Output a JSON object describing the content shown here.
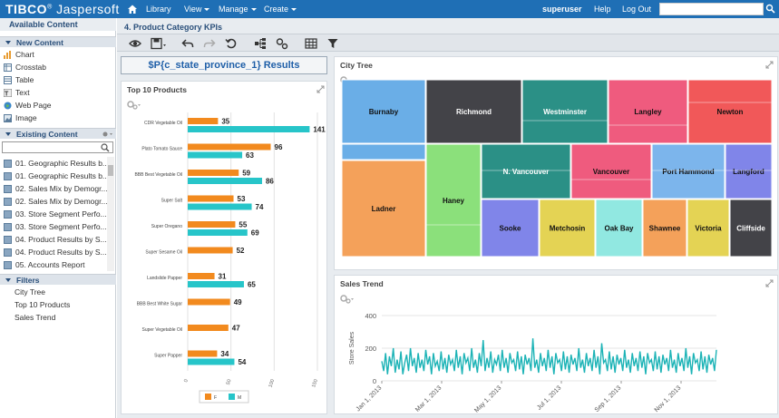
{
  "app": {
    "logo_brand": "TIBCO",
    "logo_product": "Jaspersoft",
    "logo_mark": "®",
    "nav": {
      "library": "Library",
      "view": "View",
      "manage": "Manage",
      "create": "Create"
    },
    "user": "superuser",
    "help": "Help",
    "logout": "Log Out",
    "search_value": ""
  },
  "left_panel": {
    "title": "Available Content",
    "new_content": {
      "header": "New Content",
      "items": [
        {
          "label": "Chart",
          "icon": "chart-icon"
        },
        {
          "label": "Crosstab",
          "icon": "crosstab-icon"
        },
        {
          "label": "Table",
          "icon": "table-icon"
        },
        {
          "label": "Text",
          "icon": "text-icon"
        },
        {
          "label": "Web Page",
          "icon": "web-page-icon"
        },
        {
          "label": "Image",
          "icon": "image-icon"
        }
      ]
    },
    "existing_content": {
      "header": "Existing Content",
      "search_value": "",
      "items": [
        "01. Geographic Results b...",
        "01. Geographic Results b...",
        "02. Sales Mix by Demogr...",
        "02. Sales Mix by Demogr...",
        "03. Store Segment Perfo...",
        "03. Store Segment Perfo...",
        "04. Product Results by S...",
        "04. Product Results by S...",
        "05. Accounts Report"
      ]
    },
    "filters": {
      "header": "Filters",
      "items": [
        "City Tree",
        "Top 10 Products",
        "Sales Trend"
      ]
    }
  },
  "dashboard": {
    "title": "4. Product Category KPIs",
    "toolbar_icons": [
      "eye-icon",
      "save-icon",
      "undo-icon",
      "redo-icon",
      "reset-icon",
      "hierarchy-icon",
      "parameters-icon",
      "grid-icon",
      "filter-icon"
    ],
    "results_text": "$P{c_state_province_1} Results"
  },
  "top10": {
    "title": "Top 10 Products",
    "chart_data": {
      "type": "bar",
      "orientation": "horizontal",
      "categories": [
        "CDR Vegetable Oil",
        "Plato Tomato Sauce",
        "BBB Best Vegetable Oil",
        "Super Salt",
        "Super Oregano",
        "Super Sesame Oil",
        "Landslide Papper",
        "BBB Best White Sugar",
        "Super Vegetable Oil",
        "Super Papper"
      ],
      "series": [
        {
          "name": "F",
          "color": "#f28a1e",
          "values": [
            35,
            96,
            59,
            53,
            55,
            52,
            31,
            49,
            47,
            34
          ]
        },
        {
          "name": "M",
          "color": "#27c5c9",
          "values": [
            141,
            63,
            86,
            74,
            69,
            0,
            65,
            0,
            0,
            54
          ]
        }
      ],
      "data_labels": {
        "F": [
          "35",
          "96",
          "59",
          "53",
          "55",
          "52",
          "31",
          "49",
          "47",
          "34"
        ],
        "M": [
          "141",
          "63",
          "86",
          "74",
          "69",
          "",
          "65",
          "",
          "",
          "54"
        ]
      },
      "xlim": [
        0,
        150
      ],
      "xticks": [
        "0",
        "50",
        "100",
        "150"
      ],
      "legend": "bottom"
    }
  },
  "citytree": {
    "title": "City Tree",
    "chart_data": {
      "type": "treemap",
      "nodes": [
        {
          "name": "Burnaby",
          "color": "#6aaee7"
        },
        {
          "name": "Richmond",
          "color": "#434348"
        },
        {
          "name": "Westminster",
          "color": "#2b9086"
        },
        {
          "name": "Langley",
          "color": "#ef5b7e"
        },
        {
          "name": "Newton",
          "color": "#f15859"
        },
        {
          "name": "Ladner",
          "color": "#f4a15a"
        },
        {
          "name": "Haney",
          "color": "#8be07b"
        },
        {
          "name": "N. Vancouver",
          "color": "#2b9086"
        },
        {
          "name": "Vancouver",
          "color": "#ef5b7e"
        },
        {
          "name": "Port Hammond",
          "color": "#7cb5ec"
        },
        {
          "name": "Langford",
          "color": "#8085e9"
        },
        {
          "name": "Sooke",
          "color": "#8085e9"
        },
        {
          "name": "Metchosin",
          "color": "#e4d354"
        },
        {
          "name": "Oak Bay",
          "color": "#91e8e1"
        },
        {
          "name": "Shawnee",
          "color": "#f4a15a"
        },
        {
          "name": "Victoria",
          "color": "#e4d354"
        },
        {
          "name": "Cliffside",
          "color": "#434348"
        }
      ]
    }
  },
  "salestrend": {
    "title": "Sales Trend",
    "chart_data": {
      "type": "line",
      "ylabel": "Store Sales",
      "ylim": [
        0,
        400
      ],
      "yticks": [
        "0",
        "200",
        "400"
      ],
      "xticks": [
        "Jan 1, 2013",
        "Mar 1, 2013",
        "May 1, 2013",
        "Jul 1, 2013",
        "Sep 1, 2013",
        "Nov 1, 2013"
      ],
      "series_color": "#1cb3b6",
      "values": [
        120,
        60,
        170,
        40,
        150,
        90,
        200,
        50,
        130,
        70,
        180,
        40,
        110,
        160,
        60,
        200,
        90,
        140,
        50,
        170,
        80,
        130,
        60,
        190,
        100,
        150,
        40,
        170,
        90,
        120,
        60,
        180,
        70,
        140,
        50,
        160,
        100,
        130,
        60,
        190,
        80,
        150,
        40,
        170,
        110,
        140,
        60,
        200,
        80,
        130,
        50,
        170,
        90,
        250,
        60,
        140,
        80,
        180,
        50,
        130,
        100,
        160,
        60,
        190,
        80,
        140,
        50,
        170,
        110,
        130,
        60,
        180,
        70,
        150,
        40,
        160,
        100,
        140,
        60,
        260,
        80,
        130,
        50,
        170,
        90,
        140,
        60,
        190,
        80,
        150,
        40,
        170,
        110,
        130,
        60,
        180,
        70,
        150,
        50,
        160,
        100,
        140,
        60,
        200,
        80,
        130,
        50,
        170,
        90,
        140,
        60,
        190,
        80,
        150,
        40,
        230,
        110,
        130,
        60,
        180,
        70,
        150,
        50,
        160,
        100,
        140,
        60,
        190,
        80,
        130,
        50,
        170,
        90,
        140,
        60,
        180,
        80,
        150,
        40,
        170,
        110,
        130,
        60,
        180,
        70,
        150,
        50,
        160,
        100,
        140,
        60,
        190,
        80,
        130,
        50,
        170,
        90,
        140,
        60,
        200,
        80,
        150,
        40,
        170,
        110,
        130,
        60,
        180,
        70,
        150,
        50,
        160,
        100,
        140,
        60,
        190
      ]
    }
  }
}
